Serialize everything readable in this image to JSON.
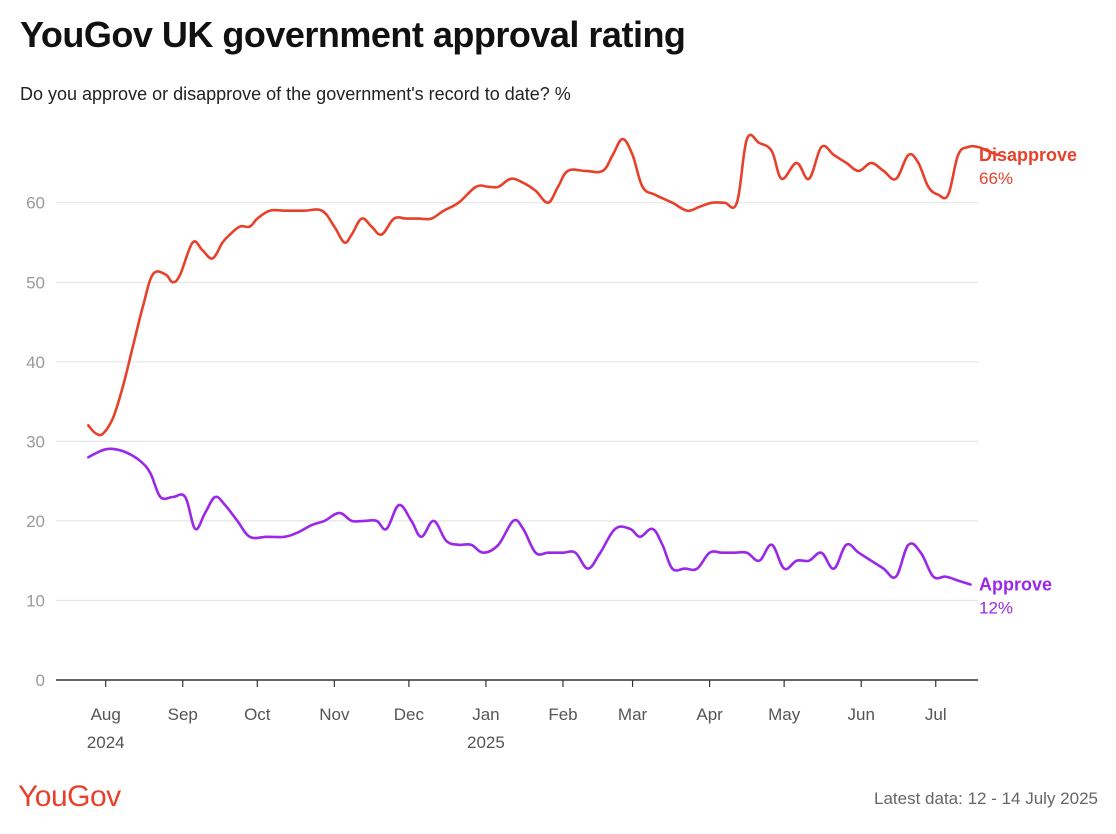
{
  "title": "YouGov UK government approval rating",
  "subtitle": "Do you approve or disapprove of the government's record to date? %",
  "logo_text": "YouGov",
  "footer": "Latest data: 12 - 14 July 2025",
  "colors": {
    "disapprove": "#e8412b",
    "approve": "#9a28e8",
    "grid": "#e6e6e6",
    "axis": "#333333"
  },
  "chart_data": {
    "type": "line",
    "ylim": [
      0,
      70
    ],
    "yticks": [
      0,
      10,
      20,
      30,
      40,
      50,
      60
    ],
    "xlim": [
      "2024-07-12",
      "2025-07-18"
    ],
    "xticks": [
      {
        "date": "2024-08-01",
        "label": "Aug",
        "sublabel": "2024"
      },
      {
        "date": "2024-09-01",
        "label": "Sep",
        "sublabel": ""
      },
      {
        "date": "2024-10-01",
        "label": "Oct",
        "sublabel": ""
      },
      {
        "date": "2024-11-01",
        "label": "Nov",
        "sublabel": ""
      },
      {
        "date": "2024-12-01",
        "label": "Dec",
        "sublabel": ""
      },
      {
        "date": "2025-01-01",
        "label": "Jan",
        "sublabel": "2025"
      },
      {
        "date": "2025-02-01",
        "label": "Feb",
        "sublabel": ""
      },
      {
        "date": "2025-03-01",
        "label": "Mar",
        "sublabel": ""
      },
      {
        "date": "2025-04-01",
        "label": "Apr",
        "sublabel": ""
      },
      {
        "date": "2025-05-01",
        "label": "May",
        "sublabel": ""
      },
      {
        "date": "2025-06-01",
        "label": "Jun",
        "sublabel": ""
      },
      {
        "date": "2025-07-01",
        "label": "Jul",
        "sublabel": ""
      }
    ],
    "series": [
      {
        "name": "Disapprove",
        "end_label": "66%",
        "color": "#e8412b",
        "points": [
          [
            "2024-07-25",
            32
          ],
          [
            "2024-07-28",
            31
          ],
          [
            "2024-07-31",
            31
          ],
          [
            "2024-08-04",
            33
          ],
          [
            "2024-08-08",
            37
          ],
          [
            "2024-08-12",
            42
          ],
          [
            "2024-08-16",
            47
          ],
          [
            "2024-08-20",
            51
          ],
          [
            "2024-08-25",
            51
          ],
          [
            "2024-08-28",
            50
          ],
          [
            "2024-08-31",
            51
          ],
          [
            "2024-09-05",
            55
          ],
          [
            "2024-09-09",
            54
          ],
          [
            "2024-09-13",
            53
          ],
          [
            "2024-09-17",
            55
          ],
          [
            "2024-09-20",
            56
          ],
          [
            "2024-09-24",
            57
          ],
          [
            "2024-09-28",
            57
          ],
          [
            "2024-10-01",
            58
          ],
          [
            "2024-10-06",
            59
          ],
          [
            "2024-10-12",
            59
          ],
          [
            "2024-10-20",
            59
          ],
          [
            "2024-10-27",
            59
          ],
          [
            "2024-11-01",
            57
          ],
          [
            "2024-11-05",
            55
          ],
          [
            "2024-11-08",
            56
          ],
          [
            "2024-11-12",
            58
          ],
          [
            "2024-11-16",
            57
          ],
          [
            "2024-11-20",
            56
          ],
          [
            "2024-11-25",
            58
          ],
          [
            "2024-11-30",
            58
          ],
          [
            "2024-12-05",
            58
          ],
          [
            "2024-12-10",
            58
          ],
          [
            "2024-12-15",
            59
          ],
          [
            "2024-12-21",
            60
          ],
          [
            "2024-12-28",
            62
          ],
          [
            "2025-01-02",
            62
          ],
          [
            "2025-01-06",
            62
          ],
          [
            "2025-01-11",
            63
          ],
          [
            "2025-01-16",
            62.5
          ],
          [
            "2025-01-21",
            61.5
          ],
          [
            "2025-01-26",
            60
          ],
          [
            "2025-01-30",
            62
          ],
          [
            "2025-02-03",
            64
          ],
          [
            "2025-02-10",
            64
          ],
          [
            "2025-02-17",
            64
          ],
          [
            "2025-02-21",
            66
          ],
          [
            "2025-02-25",
            68
          ],
          [
            "2025-03-01",
            66
          ],
          [
            "2025-03-05",
            62
          ],
          [
            "2025-03-10",
            61
          ],
          [
            "2025-03-17",
            60
          ],
          [
            "2025-03-23",
            59
          ],
          [
            "2025-03-28",
            59.5
          ],
          [
            "2025-04-02",
            60
          ],
          [
            "2025-04-07",
            60
          ],
          [
            "2025-04-12",
            60
          ],
          [
            "2025-04-16",
            68
          ],
          [
            "2025-04-21",
            67.5
          ],
          [
            "2025-04-26",
            66.5
          ],
          [
            "2025-04-30",
            63
          ],
          [
            "2025-05-06",
            65
          ],
          [
            "2025-05-11",
            63
          ],
          [
            "2025-05-16",
            67
          ],
          [
            "2025-05-21",
            66
          ],
          [
            "2025-05-26",
            65
          ],
          [
            "2025-05-31",
            64
          ],
          [
            "2025-06-05",
            65
          ],
          [
            "2025-06-10",
            64
          ],
          [
            "2025-06-15",
            63
          ],
          [
            "2025-06-20",
            66
          ],
          [
            "2025-06-24",
            65
          ],
          [
            "2025-06-28",
            62
          ],
          [
            "2025-07-02",
            61
          ],
          [
            "2025-07-06",
            61
          ],
          [
            "2025-07-10",
            66
          ],
          [
            "2025-07-14",
            67
          ],
          [
            "2025-07-18",
            67
          ],
          [
            "2025-07-22",
            66.5
          ],
          [
            "2025-07-26",
            66
          ]
        ]
      },
      {
        "name": "Approve",
        "end_label": "12%",
        "color": "#9a28e8",
        "points": [
          [
            "2024-07-25",
            28
          ],
          [
            "2024-07-28",
            28.5
          ],
          [
            "2024-08-01",
            29
          ],
          [
            "2024-08-05",
            29
          ],
          [
            "2024-08-10",
            28.5
          ],
          [
            "2024-08-15",
            27.5
          ],
          [
            "2024-08-19",
            26
          ],
          [
            "2024-08-23",
            23
          ],
          [
            "2024-08-28",
            23
          ],
          [
            "2024-09-02",
            23
          ],
          [
            "2024-09-06",
            19
          ],
          [
            "2024-09-10",
            21
          ],
          [
            "2024-09-14",
            23
          ],
          [
            "2024-09-18",
            22
          ],
          [
            "2024-09-23",
            20
          ],
          [
            "2024-09-28",
            18
          ],
          [
            "2024-10-05",
            18
          ],
          [
            "2024-10-12",
            18
          ],
          [
            "2024-10-17",
            18.5
          ],
          [
            "2024-10-23",
            19.5
          ],
          [
            "2024-10-28",
            20
          ],
          [
            "2024-11-03",
            21
          ],
          [
            "2024-11-08",
            20
          ],
          [
            "2024-11-13",
            20
          ],
          [
            "2024-11-18",
            20
          ],
          [
            "2024-11-22",
            19
          ],
          [
            "2024-11-27",
            22
          ],
          [
            "2024-12-02",
            20
          ],
          [
            "2024-12-06",
            18
          ],
          [
            "2024-12-11",
            20
          ],
          [
            "2024-12-16",
            17.5
          ],
          [
            "2024-12-21",
            17
          ],
          [
            "2024-12-26",
            17
          ],
          [
            "2024-12-31",
            16
          ],
          [
            "2025-01-06",
            17
          ],
          [
            "2025-01-12",
            20
          ],
          [
            "2025-01-16",
            19
          ],
          [
            "2025-01-21",
            16
          ],
          [
            "2025-01-26",
            16
          ],
          [
            "2025-02-01",
            16
          ],
          [
            "2025-02-06",
            16
          ],
          [
            "2025-02-11",
            14
          ],
          [
            "2025-02-16",
            16
          ],
          [
            "2025-02-22",
            19
          ],
          [
            "2025-02-28",
            19
          ],
          [
            "2025-03-04",
            18
          ],
          [
            "2025-03-09",
            19
          ],
          [
            "2025-03-13",
            17
          ],
          [
            "2025-03-17",
            14
          ],
          [
            "2025-03-22",
            14
          ],
          [
            "2025-03-27",
            14
          ],
          [
            "2025-04-01",
            16
          ],
          [
            "2025-04-06",
            16
          ],
          [
            "2025-04-11",
            16
          ],
          [
            "2025-04-16",
            16
          ],
          [
            "2025-04-21",
            15
          ],
          [
            "2025-04-26",
            17
          ],
          [
            "2025-05-01",
            14
          ],
          [
            "2025-05-06",
            15
          ],
          [
            "2025-05-11",
            15
          ],
          [
            "2025-05-16",
            16
          ],
          [
            "2025-05-21",
            14
          ],
          [
            "2025-05-26",
            17
          ],
          [
            "2025-05-31",
            16
          ],
          [
            "2025-06-05",
            15
          ],
          [
            "2025-06-10",
            14
          ],
          [
            "2025-06-15",
            13
          ],
          [
            "2025-06-20",
            17
          ],
          [
            "2025-06-25",
            16
          ],
          [
            "2025-06-30",
            13
          ],
          [
            "2025-07-05",
            13
          ],
          [
            "2025-07-10",
            12.5
          ],
          [
            "2025-07-15",
            12
          ]
        ]
      }
    ]
  }
}
